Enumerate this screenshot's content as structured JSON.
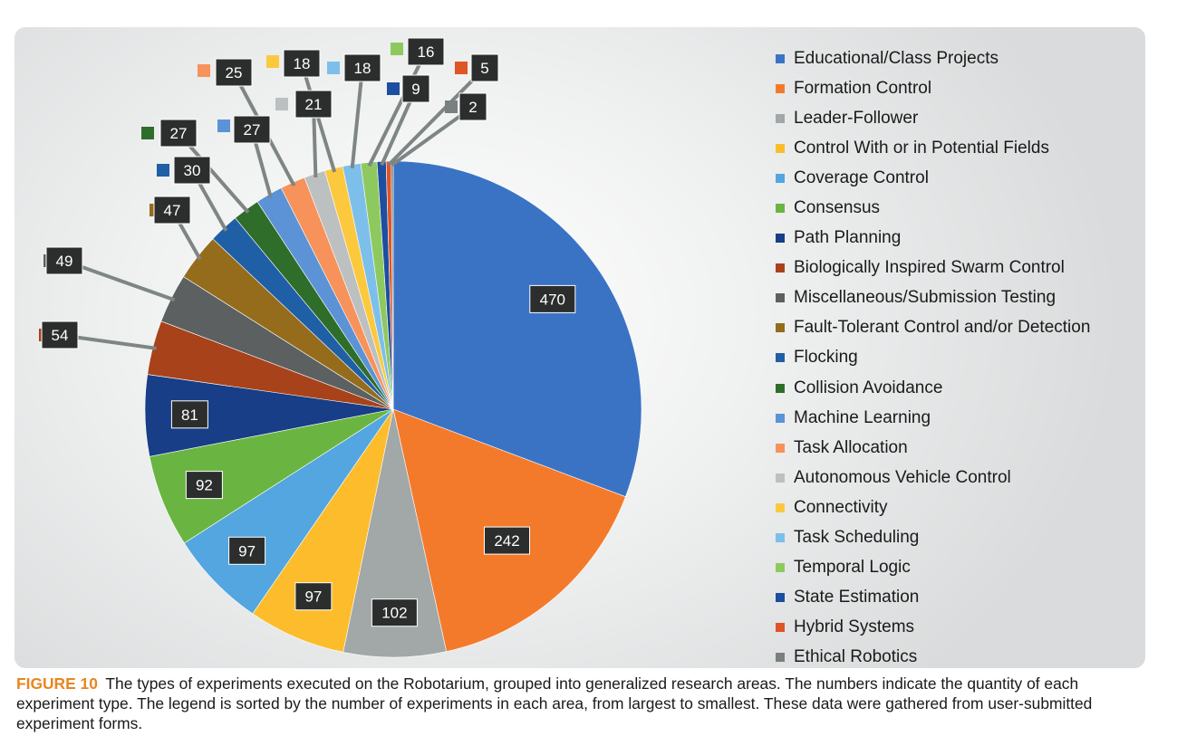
{
  "chart_data": {
    "type": "pie",
    "start_angle_deg": 0,
    "direction": "clockwise",
    "legend_position": "right",
    "slices": [
      {
        "label": "Educational/Class Projects",
        "value": 470,
        "color": "#3b73c4"
      },
      {
        "label": "Formation Control",
        "value": 242,
        "color": "#f47a2b"
      },
      {
        "label": "Leader-Follower",
        "value": 102,
        "color": "#a2a7a7"
      },
      {
        "label": "Control With or in Potential Fields",
        "value": 97,
        "color": "#fdbc2c"
      },
      {
        "label": "Coverage Control",
        "value": 97,
        "color": "#53a6df"
      },
      {
        "label": "Consensus",
        "value": 92,
        "color": "#6ab542"
      },
      {
        "label": "Path Planning",
        "value": 81,
        "color": "#173e86"
      },
      {
        "label": "Biologically Inspired Swarm Control",
        "value": 54,
        "color": "#a8421b"
      },
      {
        "label": "Miscellaneous/Submission Testing",
        "value": 49,
        "color": "#5c6060"
      },
      {
        "label": "Fault-Tolerant Control and/or Detection",
        "value": 47,
        "color": "#946c1c"
      },
      {
        "label": "Flocking",
        "value": 30,
        "color": "#1f5fa6"
      },
      {
        "label": "Collision Avoidance",
        "value": 27,
        "color": "#2f6d2a"
      },
      {
        "label": "Machine Learning",
        "value": 27,
        "color": "#5b93d6"
      },
      {
        "label": "Task Allocation",
        "value": 25,
        "color": "#f7925b"
      },
      {
        "label": "Autonomous Vehicle Control",
        "value": 21,
        "color": "#bcc0c0"
      },
      {
        "label": "Connectivity",
        "value": 18,
        "color": "#fcc93e"
      },
      {
        "label": "Task Scheduling",
        "value": 18,
        "color": "#7dbfeb"
      },
      {
        "label": "Temporal Logic",
        "value": 16,
        "color": "#8ec95f"
      },
      {
        "label": "State Estimation",
        "value": 9,
        "color": "#1d4ea0"
      },
      {
        "label": "Hybrid Systems",
        "value": 5,
        "color": "#de5526"
      },
      {
        "label": "Ethical Robotics",
        "value": 2,
        "color": "#7a8080"
      }
    ]
  },
  "caption": {
    "figure_label": "FIGURE 10",
    "text": "The types of experiments executed on the Robotarium, grouped into generalized research areas. The numbers indicate the quantity of each experiment type. The legend is sorted by the number of experiments in each area, from largest to smallest. These data were gathered from user-submitted experiment forms."
  }
}
